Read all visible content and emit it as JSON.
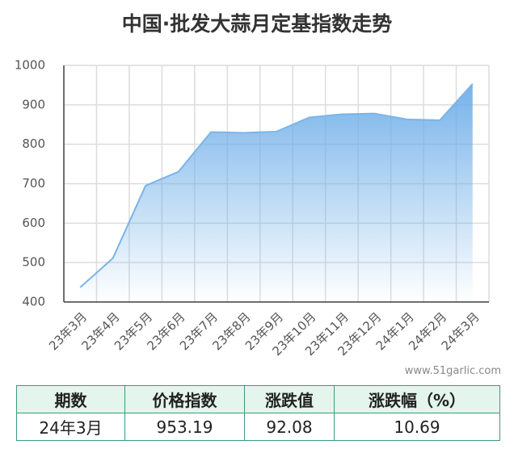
{
  "chart_data": {
    "type": "area",
    "title": "中国·批发大蒜月定基指数走势",
    "watermark": "www.51garlic.com",
    "categories": [
      "23年3月",
      "23年4月",
      "23年5月",
      "23年6月",
      "23年7月",
      "23年8月",
      "23年9月",
      "23年10月",
      "23年11月",
      "23年12月",
      "24年1月",
      "24年2月",
      "24年3月"
    ],
    "values": [
      437,
      511,
      695,
      730,
      831,
      829,
      832,
      868,
      876,
      878,
      863,
      861.11,
      953.19
    ],
    "color": "#7ab4ea",
    "ylim": [
      400,
      1000
    ],
    "yticks": [
      400,
      500,
      600,
      700,
      800,
      900,
      1000
    ],
    "grid": true
  },
  "table": {
    "header": [
      "期数",
      "价格指数",
      "涨跌值",
      "涨跌幅（%）"
    ],
    "rows": [
      [
        "24年3月",
        "953.19",
        "92.08",
        "10.69"
      ]
    ]
  }
}
